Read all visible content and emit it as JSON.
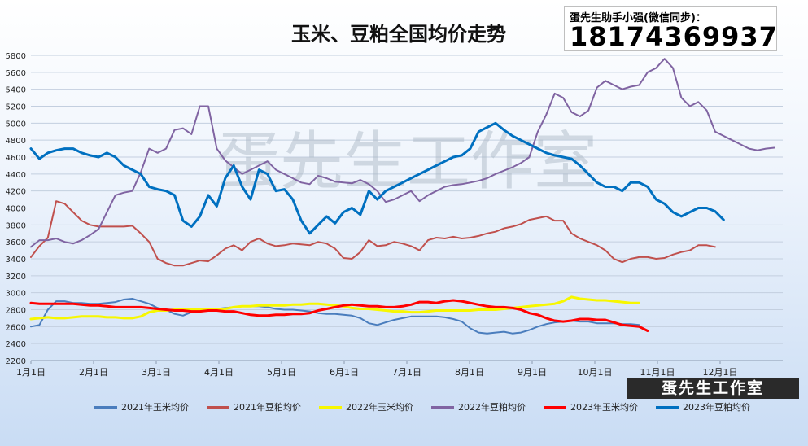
{
  "chart_data": {
    "type": "line",
    "title": "玉米、豆粕全国均价走势",
    "contact_label": "蛋先生助手小强(微信同步)：",
    "contact_number": "18174369937",
    "watermark": "蛋先生工作室",
    "stamp": "蛋先生工作室",
    "y_range": [
      2200,
      5800
    ],
    "y_ticks": [
      "2200",
      "2400",
      "2600",
      "2800",
      "3000",
      "3200",
      "3400",
      "3600",
      "3800",
      "4000",
      "4200",
      "4400",
      "4600",
      "4800",
      "5000",
      "5200",
      "5400",
      "5600",
      "5800"
    ],
    "x_ticks": [
      "1月1日",
      "2月1日",
      "3月1日",
      "4月1日",
      "5月1日",
      "6月1日",
      "7月1日",
      "8月1日",
      "9月1日",
      "10月1日",
      "11月1日",
      "12月1日"
    ],
    "grid": true,
    "legend_position": "bottom",
    "series": [
      {
        "name": "2021年玉米均价",
        "color": "#4a7dbd",
        "width": 2,
        "values": [
          2600,
          2620,
          2800,
          2900,
          2900,
          2880,
          2880,
          2870,
          2870,
          2880,
          2890,
          2920,
          2930,
          2900,
          2870,
          2820,
          2800,
          2750,
          2730,
          2770,
          2790,
          2800,
          2810,
          2820,
          2830,
          2840,
          2840,
          2840,
          2830,
          2810,
          2800,
          2800,
          2790,
          2780,
          2760,
          2750,
          2750,
          2740,
          2730,
          2700,
          2640,
          2620,
          2650,
          2680,
          2700,
          2720,
          2720,
          2720,
          2720,
          2710,
          2690,
          2660,
          2580,
          2530,
          2520,
          2530,
          2540,
          2520,
          2530,
          2560,
          2600,
          2630,
          2650,
          2660,
          2670,
          2660,
          2660,
          2640,
          2640,
          2640,
          2630,
          2630,
          2620
        ]
      },
      {
        "name": "2021年豆粕均价",
        "color": "#c0504d",
        "width": 2,
        "values": [
          3420,
          3550,
          3650,
          4080,
          4050,
          3950,
          3850,
          3800,
          3780,
          3780,
          3780,
          3780,
          3790,
          3700,
          3600,
          3400,
          3350,
          3320,
          3320,
          3350,
          3380,
          3370,
          3440,
          3520,
          3560,
          3500,
          3600,
          3640,
          3580,
          3550,
          3560,
          3580,
          3570,
          3560,
          3600,
          3580,
          3520,
          3410,
          3400,
          3480,
          3620,
          3550,
          3560,
          3600,
          3580,
          3550,
          3500,
          3620,
          3650,
          3640,
          3660,
          3640,
          3650,
          3670,
          3700,
          3720,
          3760,
          3780,
          3810,
          3860,
          3880,
          3900,
          3850,
          3850,
          3700,
          3640,
          3600,
          3560,
          3500,
          3400,
          3360,
          3400,
          3420,
          3420,
          3400,
          3410,
          3450,
          3480,
          3500,
          3560,
          3560,
          3540
        ]
      },
      {
        "name": "2022年玉米均价",
        "color": "#f7f700",
        "width": 3,
        "values": [
          2690,
          2700,
          2710,
          2700,
          2700,
          2710,
          2720,
          2720,
          2720,
          2710,
          2710,
          2700,
          2700,
          2720,
          2770,
          2790,
          2790,
          2800,
          2800,
          2800,
          2800,
          2800,
          2800,
          2810,
          2830,
          2840,
          2840,
          2850,
          2850,
          2850,
          2850,
          2860,
          2860,
          2870,
          2870,
          2860,
          2850,
          2840,
          2820,
          2810,
          2810,
          2800,
          2790,
          2780,
          2780,
          2770,
          2770,
          2780,
          2790,
          2790,
          2790,
          2790,
          2790,
          2800,
          2800,
          2800,
          2810,
          2820,
          2830,
          2840,
          2850,
          2860,
          2870,
          2900,
          2950,
          2930,
          2920,
          2910,
          2910,
          2900,
          2890,
          2880,
          2880
        ]
      },
      {
        "name": "2022年豆粕均价",
        "color": "#8064a2",
        "width": 2,
        "values": [
          3540,
          3620,
          3620,
          3640,
          3600,
          3580,
          3620,
          3680,
          3750,
          3950,
          4150,
          4180,
          4200,
          4420,
          4700,
          4650,
          4700,
          4920,
          4940,
          4870,
          5200,
          5200,
          4700,
          4560,
          4480,
          4400,
          4450,
          4500,
          4550,
          4450,
          4400,
          4350,
          4300,
          4280,
          4380,
          4350,
          4310,
          4300,
          4290,
          4330,
          4280,
          4200,
          4070,
          4100,
          4150,
          4200,
          4080,
          4150,
          4200,
          4250,
          4270,
          4280,
          4300,
          4320,
          4350,
          4400,
          4440,
          4480,
          4530,
          4600,
          4900,
          5100,
          5350,
          5300,
          5130,
          5080,
          5150,
          5420,
          5500,
          5450,
          5400,
          5430,
          5450,
          5600,
          5650,
          5760,
          5650,
          5300,
          5200,
          5250,
          5150,
          4900,
          4850,
          4800,
          4750,
          4700,
          4680,
          4700,
          4710
        ]
      },
      {
        "name": "2023年玉米均价",
        "color": "#ff0000",
        "width": 3,
        "values": [
          2880,
          2870,
          2870,
          2870,
          2870,
          2870,
          2860,
          2850,
          2850,
          2840,
          2830,
          2830,
          2830,
          2830,
          2820,
          2810,
          2800,
          2790,
          2790,
          2780,
          2780,
          2790,
          2790,
          2780,
          2780,
          2760,
          2740,
          2730,
          2730,
          2740,
          2740,
          2750,
          2750,
          2760,
          2790,
          2810,
          2830,
          2850,
          2860,
          2850,
          2840,
          2840,
          2830,
          2830,
          2840,
          2860,
          2890,
          2890,
          2880,
          2900,
          2910,
          2900,
          2880,
          2860,
          2840,
          2830,
          2830,
          2820,
          2800,
          2760,
          2740,
          2700,
          2670,
          2660,
          2670,
          2690,
          2690,
          2680,
          2680,
          2650,
          2620,
          2610,
          2600,
          2550
        ]
      },
      {
        "name": "2023年豆粕均价",
        "color": "#0070c0",
        "width": 3,
        "values": [
          4700,
          4580,
          4650,
          4680,
          4700,
          4700,
          4650,
          4620,
          4600,
          4650,
          4600,
          4500,
          4450,
          4400,
          4250,
          4220,
          4200,
          4150,
          3850,
          3780,
          3900,
          4150,
          4020,
          4350,
          4500,
          4250,
          4100,
          4450,
          4400,
          4200,
          4220,
          4100,
          3850,
          3700,
          3800,
          3900,
          3820,
          3950,
          4000,
          3920,
          4200,
          4100,
          4200,
          4250,
          4300,
          4350,
          4400,
          4450,
          4500,
          4550,
          4600,
          4620,
          4700,
          4900,
          4950,
          5000,
          4920,
          4850,
          4800,
          4750,
          4700,
          4650,
          4620,
          4600,
          4580,
          4500,
          4400,
          4300,
          4250,
          4250,
          4200,
          4300,
          4300,
          4250,
          4100,
          4050,
          3950,
          3900,
          3950,
          4000,
          4000,
          3960,
          3860
        ]
      }
    ]
  }
}
